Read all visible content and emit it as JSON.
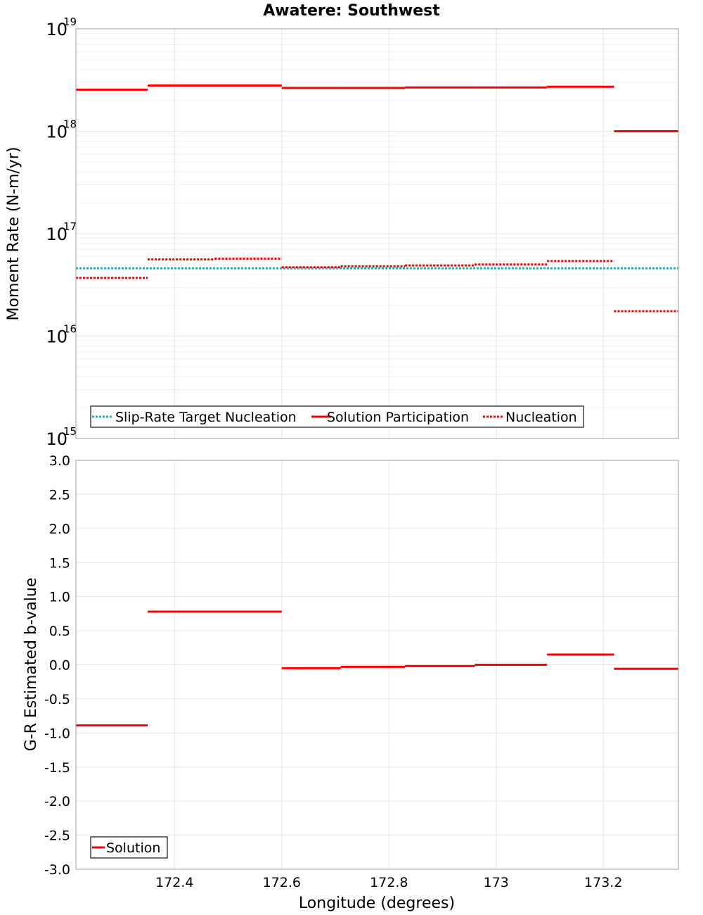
{
  "chart_data": [
    {
      "type": "line",
      "title": "Awatere: Southwest",
      "xlabel": "",
      "ylabel": "Moment Rate (N-m/yr)",
      "yscale": "log",
      "ylim": [
        1000000000000000.0,
        1e+19
      ],
      "xlim": [
        172.216,
        173.34
      ],
      "x_tick_labels": [],
      "y_ticks": [
        {
          "base": "10",
          "exp": "15"
        },
        {
          "base": "10",
          "exp": "16"
        },
        {
          "base": "10",
          "exp": "17"
        },
        {
          "base": "10",
          "exp": "18"
        },
        {
          "base": "10",
          "exp": "19"
        }
      ],
      "legend": {
        "placement": "bottom-left",
        "entries": [
          {
            "label": "Slip-Rate Target Nucleation",
            "color": "#19b6bd",
            "style": "dotted"
          },
          {
            "label": "Solution Participation",
            "color": "#ff0000",
            "style": "solid"
          },
          {
            "label": "Nucleation",
            "color": "#ff0000",
            "style": "dotted"
          }
        ]
      },
      "series": [
        {
          "name": "Slip-Rate Target Nucleation",
          "color": "#19b6bd",
          "style": "dotted",
          "segments": [
            {
              "x0": 172.216,
              "x1": 173.34,
              "y": 4.6e+16
            }
          ]
        },
        {
          "name": "Solution Participation",
          "color": "#ff0000",
          "style": "solid",
          "segments": [
            {
              "x0": 172.216,
              "x1": 172.35,
              "y": 2.55e+18
            },
            {
              "x0": 172.35,
              "x1": 172.475,
              "y": 2.8e+18
            },
            {
              "x0": 172.475,
              "x1": 172.6,
              "y": 2.8e+18
            },
            {
              "x0": 172.6,
              "x1": 172.71,
              "y": 2.65e+18
            },
            {
              "x0": 172.71,
              "x1": 172.83,
              "y": 2.65e+18
            },
            {
              "x0": 172.83,
              "x1": 172.96,
              "y": 2.68e+18
            },
            {
              "x0": 172.96,
              "x1": 173.095,
              "y": 2.68e+18
            },
            {
              "x0": 173.095,
              "x1": 173.22,
              "y": 2.72e+18
            },
            {
              "x0": 173.22,
              "x1": 173.34,
              "y": 1e+18
            }
          ]
        },
        {
          "name": "Nucleation",
          "color": "#ff0000",
          "style": "dotted",
          "segments": [
            {
              "x0": 172.216,
              "x1": 172.35,
              "y": 3.7e+16
            },
            {
              "x0": 172.35,
              "x1": 172.475,
              "y": 5.6e+16
            },
            {
              "x0": 172.475,
              "x1": 172.6,
              "y": 5.7e+16
            },
            {
              "x0": 172.6,
              "x1": 172.71,
              "y": 4.7e+16
            },
            {
              "x0": 172.71,
              "x1": 172.83,
              "y": 4.8e+16
            },
            {
              "x0": 172.83,
              "x1": 172.96,
              "y": 4.9e+16
            },
            {
              "x0": 172.96,
              "x1": 173.095,
              "y": 5e+16
            },
            {
              "x0": 173.095,
              "x1": 173.22,
              "y": 5.4e+16
            },
            {
              "x0": 173.22,
              "x1": 173.34,
              "y": 1.75e+16
            }
          ]
        }
      ]
    },
    {
      "type": "line",
      "title": "",
      "xlabel": "Longitude (degrees)",
      "ylabel": "G-R Estimated b-value",
      "yscale": "linear",
      "ylim": [
        -3.0,
        3.0
      ],
      "xlim": [
        172.216,
        173.34
      ],
      "x_ticks": [
        172.4,
        172.6,
        172.8,
        173.0,
        173.2
      ],
      "x_tick_labels": [
        "172.4",
        "172.6",
        "172.8",
        "173",
        "173.2"
      ],
      "y_ticks": [
        3.0,
        2.5,
        2.0,
        1.5,
        1.0,
        0.5,
        0.0,
        -0.5,
        -1.0,
        -1.5,
        -2.0,
        -2.5,
        -3.0
      ],
      "y_tick_labels": [
        "3.0",
        "2.5",
        "2.0",
        "1.5",
        "1.0",
        "0.5",
        "0.0",
        "-0.5",
        "-1.0",
        "-1.5",
        "-2.0",
        "-2.5",
        "-3.0"
      ],
      "legend": {
        "placement": "bottom-left",
        "entries": [
          {
            "label": "Solution",
            "color": "#ff0000",
            "style": "solid"
          }
        ]
      },
      "series": [
        {
          "name": "Solution",
          "color": "#ff0000",
          "style": "solid",
          "segments": [
            {
              "x0": 172.216,
              "x1": 172.35,
              "y": -0.89
            },
            {
              "x0": 172.35,
              "x1": 172.475,
              "y": 0.78
            },
            {
              "x0": 172.475,
              "x1": 172.6,
              "y": 0.78
            },
            {
              "x0": 172.6,
              "x1": 172.71,
              "y": -0.05
            },
            {
              "x0": 172.71,
              "x1": 172.83,
              "y": -0.03
            },
            {
              "x0": 172.83,
              "x1": 172.96,
              "y": -0.02
            },
            {
              "x0": 172.96,
              "x1": 173.095,
              "y": 0.0
            },
            {
              "x0": 173.095,
              "x1": 173.22,
              "y": 0.15
            },
            {
              "x0": 173.22,
              "x1": 173.34,
              "y": -0.06
            }
          ]
        }
      ]
    }
  ]
}
